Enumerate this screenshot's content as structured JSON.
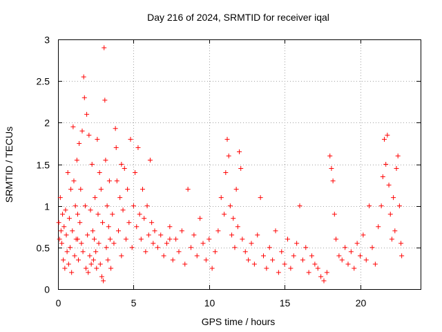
{
  "chart_data": {
    "type": "scatter",
    "title": "Day 216 of 2024, SRMTID for receiver iqal",
    "xlabel": "GPS time / hours",
    "ylabel": "SRMTID / TECUs",
    "xlim": [
      0,
      24
    ],
    "ylim": [
      0,
      3
    ],
    "xticks": [
      0,
      5,
      10,
      15,
      20
    ],
    "xtick_labels": [
      "0",
      "5",
      "10",
      "15",
      "20"
    ],
    "yticks": [
      0,
      0.5,
      1,
      1.5,
      2,
      2.5,
      3
    ],
    "ytick_labels": [
      "0",
      "0.5",
      "1",
      "1.5",
      "2",
      "2.5",
      "3"
    ],
    "grid": true,
    "marker": "+",
    "color": "#ff0000",
    "series": [
      {
        "name": "SRMTID",
        "points": [
          [
            0.05,
            0.8
          ],
          [
            0.1,
            0.6
          ],
          [
            0.15,
            1.1
          ],
          [
            0.2,
            0.7
          ],
          [
            0.25,
            0.55
          ],
          [
            0.3,
            0.9
          ],
          [
            0.35,
            0.35
          ],
          [
            0.4,
            0.75
          ],
          [
            0.45,
            0.25
          ],
          [
            0.5,
            0.95
          ],
          [
            0.55,
            0.65
          ],
          [
            0.6,
            0.45
          ],
          [
            0.65,
            1.4
          ],
          [
            0.7,
            0.3
          ],
          [
            0.75,
            0.85
          ],
          [
            0.8,
            0.5
          ],
          [
            0.85,
            1.2
          ],
          [
            0.9,
            0.2
          ],
          [
            0.95,
            0.7
          ],
          [
            1.0,
            1.95
          ],
          [
            1.05,
            1.3
          ],
          [
            1.1,
            0.4
          ],
          [
            1.15,
            1.0
          ],
          [
            1.2,
            0.6
          ],
          [
            1.25,
            1.55
          ],
          [
            1.3,
            0.9
          ],
          [
            1.35,
            0.35
          ],
          [
            1.4,
            1.75
          ],
          [
            1.45,
            0.8
          ],
          [
            1.5,
            1.2
          ],
          [
            1.55,
            0.55
          ],
          [
            1.6,
            1.9
          ],
          [
            1.65,
            0.45
          ],
          [
            1.7,
            2.55
          ],
          [
            1.75,
            2.3
          ],
          [
            1.8,
            1.0
          ],
          [
            1.85,
            0.25
          ],
          [
            1.9,
            2.1
          ],
          [
            1.95,
            0.65
          ],
          [
            2.0,
            0.2
          ],
          [
            2.05,
            1.85
          ],
          [
            2.1,
            0.4
          ],
          [
            2.15,
            0.95
          ],
          [
            2.2,
            0.3
          ],
          [
            2.25,
            1.5
          ],
          [
            2.3,
            0.7
          ],
          [
            2.35,
            0.35
          ],
          [
            2.4,
            0.6
          ],
          [
            2.45,
            1.1
          ],
          [
            2.5,
            0.45
          ],
          [
            2.55,
            0.25
          ],
          [
            2.6,
            1.8
          ],
          [
            2.65,
            0.9
          ],
          [
            2.7,
            0.55
          ],
          [
            2.75,
            1.4
          ],
          [
            2.8,
            0.3
          ],
          [
            2.85,
            1.2
          ],
          [
            2.9,
            0.15
          ],
          [
            2.95,
            0.8
          ],
          [
            3.0,
            0.1
          ],
          [
            3.05,
            2.9
          ],
          [
            3.1,
            2.27
          ],
          [
            3.15,
            1.55
          ],
          [
            3.2,
            0.5
          ],
          [
            3.25,
            1.0
          ],
          [
            3.3,
            0.35
          ],
          [
            3.35,
            0.75
          ],
          [
            3.4,
            1.3
          ],
          [
            3.45,
            0.6
          ],
          [
            3.5,
            0.25
          ],
          [
            3.6,
            0.9
          ],
          [
            3.7,
            0.55
          ],
          [
            3.8,
            1.93
          ],
          [
            3.85,
            1.7
          ],
          [
            3.9,
            1.3
          ],
          [
            4.0,
            0.7
          ],
          [
            4.1,
            1.1
          ],
          [
            4.2,
            0.4
          ],
          [
            4.3,
            0.95
          ],
          [
            4.4,
            1.45
          ],
          [
            4.5,
            0.6
          ],
          [
            4.6,
            1.2
          ],
          [
            4.7,
            0.8
          ],
          [
            4.8,
            1.8
          ],
          [
            4.9,
            0.5
          ],
          [
            5.0,
            1.0
          ],
          [
            5.1,
            1.4
          ],
          [
            5.2,
            0.75
          ],
          [
            5.3,
            1.7
          ],
          [
            5.4,
            0.9
          ],
          [
            5.5,
            0.6
          ],
          [
            5.6,
            1.2
          ],
          [
            5.7,
            0.85
          ],
          [
            5.8,
            0.45
          ],
          [
            5.9,
            1.0
          ],
          [
            6.0,
            0.65
          ],
          [
            6.1,
            1.55
          ],
          [
            6.2,
            0.8
          ],
          [
            6.3,
            0.55
          ],
          [
            6.4,
            0.7
          ],
          [
            6.6,
            0.5
          ],
          [
            6.8,
            0.65
          ],
          [
            7.0,
            0.4
          ],
          [
            7.2,
            0.55
          ],
          [
            7.4,
            0.75
          ],
          [
            7.6,
            0.35
          ],
          [
            7.8,
            0.6
          ],
          [
            8.0,
            0.45
          ],
          [
            8.2,
            0.7
          ],
          [
            8.4,
            0.3
          ],
          [
            8.6,
            1.2
          ],
          [
            8.8,
            0.5
          ],
          [
            9.0,
            0.65
          ],
          [
            9.2,
            0.4
          ],
          [
            9.4,
            0.85
          ],
          [
            9.6,
            0.55
          ],
          [
            9.8,
            0.35
          ],
          [
            10.0,
            0.6
          ],
          [
            10.2,
            0.25
          ],
          [
            10.4,
            0.45
          ],
          [
            10.6,
            0.7
          ],
          [
            10.8,
            1.1
          ],
          [
            11.0,
            0.9
          ],
          [
            11.1,
            1.4
          ],
          [
            11.2,
            1.8
          ],
          [
            11.3,
            1.6
          ],
          [
            11.4,
            1.0
          ],
          [
            11.5,
            0.65
          ],
          [
            11.6,
            0.85
          ],
          [
            11.7,
            0.5
          ],
          [
            11.8,
            1.2
          ],
          [
            11.9,
            0.75
          ],
          [
            12.0,
            1.65
          ],
          [
            12.1,
            1.45
          ],
          [
            12.2,
            0.6
          ],
          [
            12.4,
            0.45
          ],
          [
            12.6,
            0.35
          ],
          [
            12.8,
            0.55
          ],
          [
            13.0,
            0.3
          ],
          [
            13.2,
            0.65
          ],
          [
            13.4,
            1.1
          ],
          [
            13.6,
            0.4
          ],
          [
            13.8,
            0.25
          ],
          [
            14.0,
            0.5
          ],
          [
            14.2,
            0.35
          ],
          [
            14.4,
            0.7
          ],
          [
            14.6,
            0.2
          ],
          [
            14.8,
            0.45
          ],
          [
            15.0,
            0.3
          ],
          [
            15.2,
            0.6
          ],
          [
            15.4,
            0.25
          ],
          [
            15.6,
            0.4
          ],
          [
            15.8,
            0.55
          ],
          [
            16.0,
            1.0
          ],
          [
            16.2,
            0.35
          ],
          [
            16.4,
            0.5
          ],
          [
            16.6,
            0.2
          ],
          [
            16.8,
            0.4
          ],
          [
            17.0,
            0.3
          ],
          [
            17.2,
            0.25
          ],
          [
            17.4,
            0.15
          ],
          [
            17.6,
            0.1
          ],
          [
            17.8,
            0.2
          ],
          [
            18.0,
            1.6
          ],
          [
            18.1,
            1.45
          ],
          [
            18.2,
            1.3
          ],
          [
            18.3,
            0.9
          ],
          [
            18.4,
            0.6
          ],
          [
            18.6,
            0.4
          ],
          [
            18.8,
            0.35
          ],
          [
            19.0,
            0.5
          ],
          [
            19.2,
            0.3
          ],
          [
            19.4,
            0.45
          ],
          [
            19.6,
            0.25
          ],
          [
            19.8,
            0.55
          ],
          [
            20.0,
            0.4
          ],
          [
            20.2,
            0.65
          ],
          [
            20.4,
            0.35
          ],
          [
            20.6,
            1.0
          ],
          [
            20.8,
            0.5
          ],
          [
            21.0,
            0.3
          ],
          [
            21.2,
            0.75
          ],
          [
            21.4,
            1.0
          ],
          [
            21.5,
            1.35
          ],
          [
            21.6,
            1.8
          ],
          [
            21.7,
            1.5
          ],
          [
            21.8,
            1.85
          ],
          [
            21.9,
            1.25
          ],
          [
            22.0,
            0.9
          ],
          [
            22.1,
            0.6
          ],
          [
            22.2,
            1.1
          ],
          [
            22.3,
            0.7
          ],
          [
            22.4,
            1.45
          ],
          [
            22.5,
            1.6
          ],
          [
            22.6,
            1.0
          ],
          [
            22.7,
            0.55
          ],
          [
            22.75,
            0.4
          ],
          [
            1.3,
            0.6
          ],
          [
            4.2,
            1.5
          ],
          [
            7.4,
            0.6
          ]
        ]
      }
    ]
  }
}
